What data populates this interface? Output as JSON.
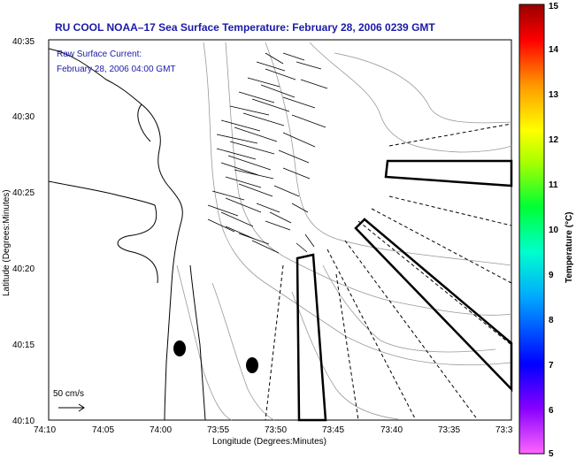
{
  "title": "RU COOL  NOAA–17  Sea Surface Temperature:  February 28, 2006 0239 GMT",
  "overlay_label": "Raw Surface Current:",
  "overlay_date": "February 28, 2006 04:00 GMT",
  "scale_label": "50 cm/s",
  "x_axis": {
    "label": "Longitude (Degrees:Minutes)",
    "ticks": [
      "74:10",
      "74:05",
      "74:00",
      "73:55",
      "73:50",
      "73:45",
      "73:40",
      "73:35",
      "73:3"
    ]
  },
  "y_axis": {
    "label": "Latitude (Degrees:Minutes)",
    "ticks": [
      "40:10",
      "40:15",
      "40:20",
      "40:25",
      "40:30",
      "40:35"
    ]
  },
  "colorbar": {
    "label": "Temperature (°C)",
    "ticks": [
      "5",
      "6",
      "7",
      "8",
      "9",
      "10",
      "11",
      "12",
      "13",
      "14",
      "15"
    ],
    "colors": [
      "#ff66ff",
      "#8800ff",
      "#0000ff",
      "#00aaff",
      "#00ffcc",
      "#00ff33",
      "#aaff00",
      "#ffff00",
      "#ff9900",
      "#ff0000",
      "#990000"
    ]
  }
}
